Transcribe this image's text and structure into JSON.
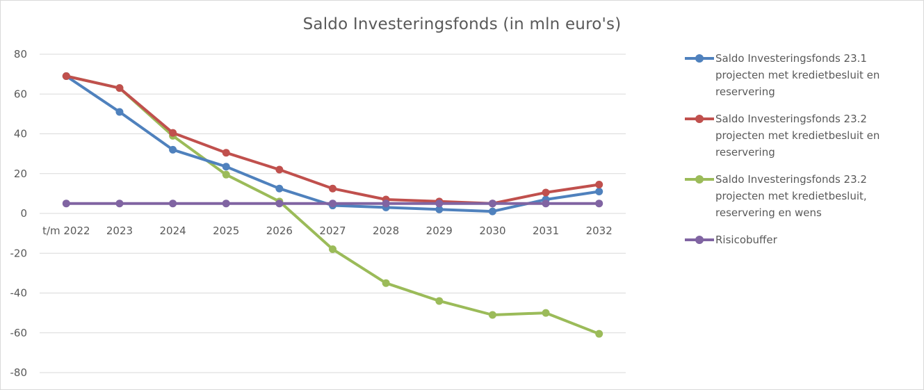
{
  "chart_data": {
    "type": "line",
    "title": "Saldo Investeringsfonds (in mln euro's)",
    "xlabel": "",
    "ylabel": "",
    "categories": [
      "t/m 2022",
      "2023",
      "2024",
      "2025",
      "2026",
      "2027",
      "2028",
      "2029",
      "2030",
      "2031",
      "2032"
    ],
    "ylim": [
      -80,
      80
    ],
    "yticks": [
      80,
      60,
      40,
      20,
      0,
      -20,
      -40,
      -60,
      -80
    ],
    "grid": true,
    "legend_position": "right",
    "series": [
      {
        "name": "Saldo Investeringsfonds 23.1 projecten met kredietbesluit en reservering",
        "color": "#4F81BD",
        "values": [
          69,
          51,
          32,
          23.5,
          12.5,
          4,
          3,
          2,
          1,
          7,
          11
        ]
      },
      {
        "name": "Saldo Investeringsfonds 23.2 projecten met kredietbesluit en reservering",
        "color": "#C0504D",
        "values": [
          69,
          63,
          40.5,
          30.5,
          22,
          12.5,
          7,
          6,
          5,
          10.5,
          14.5
        ]
      },
      {
        "name": "Saldo Investeringsfonds 23.2 projecten met kredietbesluit, reservering en wens",
        "color": "#9BBB59",
        "values": [
          69,
          63,
          39,
          19.5,
          6,
          -18,
          -35,
          -44,
          -51,
          -50,
          -60.5
        ]
      },
      {
        "name": "Risicobuffer",
        "color": "#8064A2",
        "values": [
          5,
          5,
          5,
          5,
          5,
          5,
          5,
          5,
          5,
          5,
          5
        ]
      }
    ]
  },
  "legend": {
    "items": [
      {
        "lines": [
          "Saldo Investeringsfonds 23.1",
          "projecten met kredietbesluit en",
          "reservering"
        ],
        "color": "#4F81BD"
      },
      {
        "lines": [
          "Saldo Investeringsfonds 23.2",
          "projecten met kredietbesluit en",
          "reservering"
        ],
        "color": "#C0504D"
      },
      {
        "lines": [
          "Saldo Investeringsfonds 23.2",
          "projecten met kredietbesluit,",
          "reservering en wens"
        ],
        "color": "#9BBB59"
      },
      {
        "lines": [
          "Risicobuffer"
        ],
        "color": "#8064A2"
      }
    ]
  }
}
